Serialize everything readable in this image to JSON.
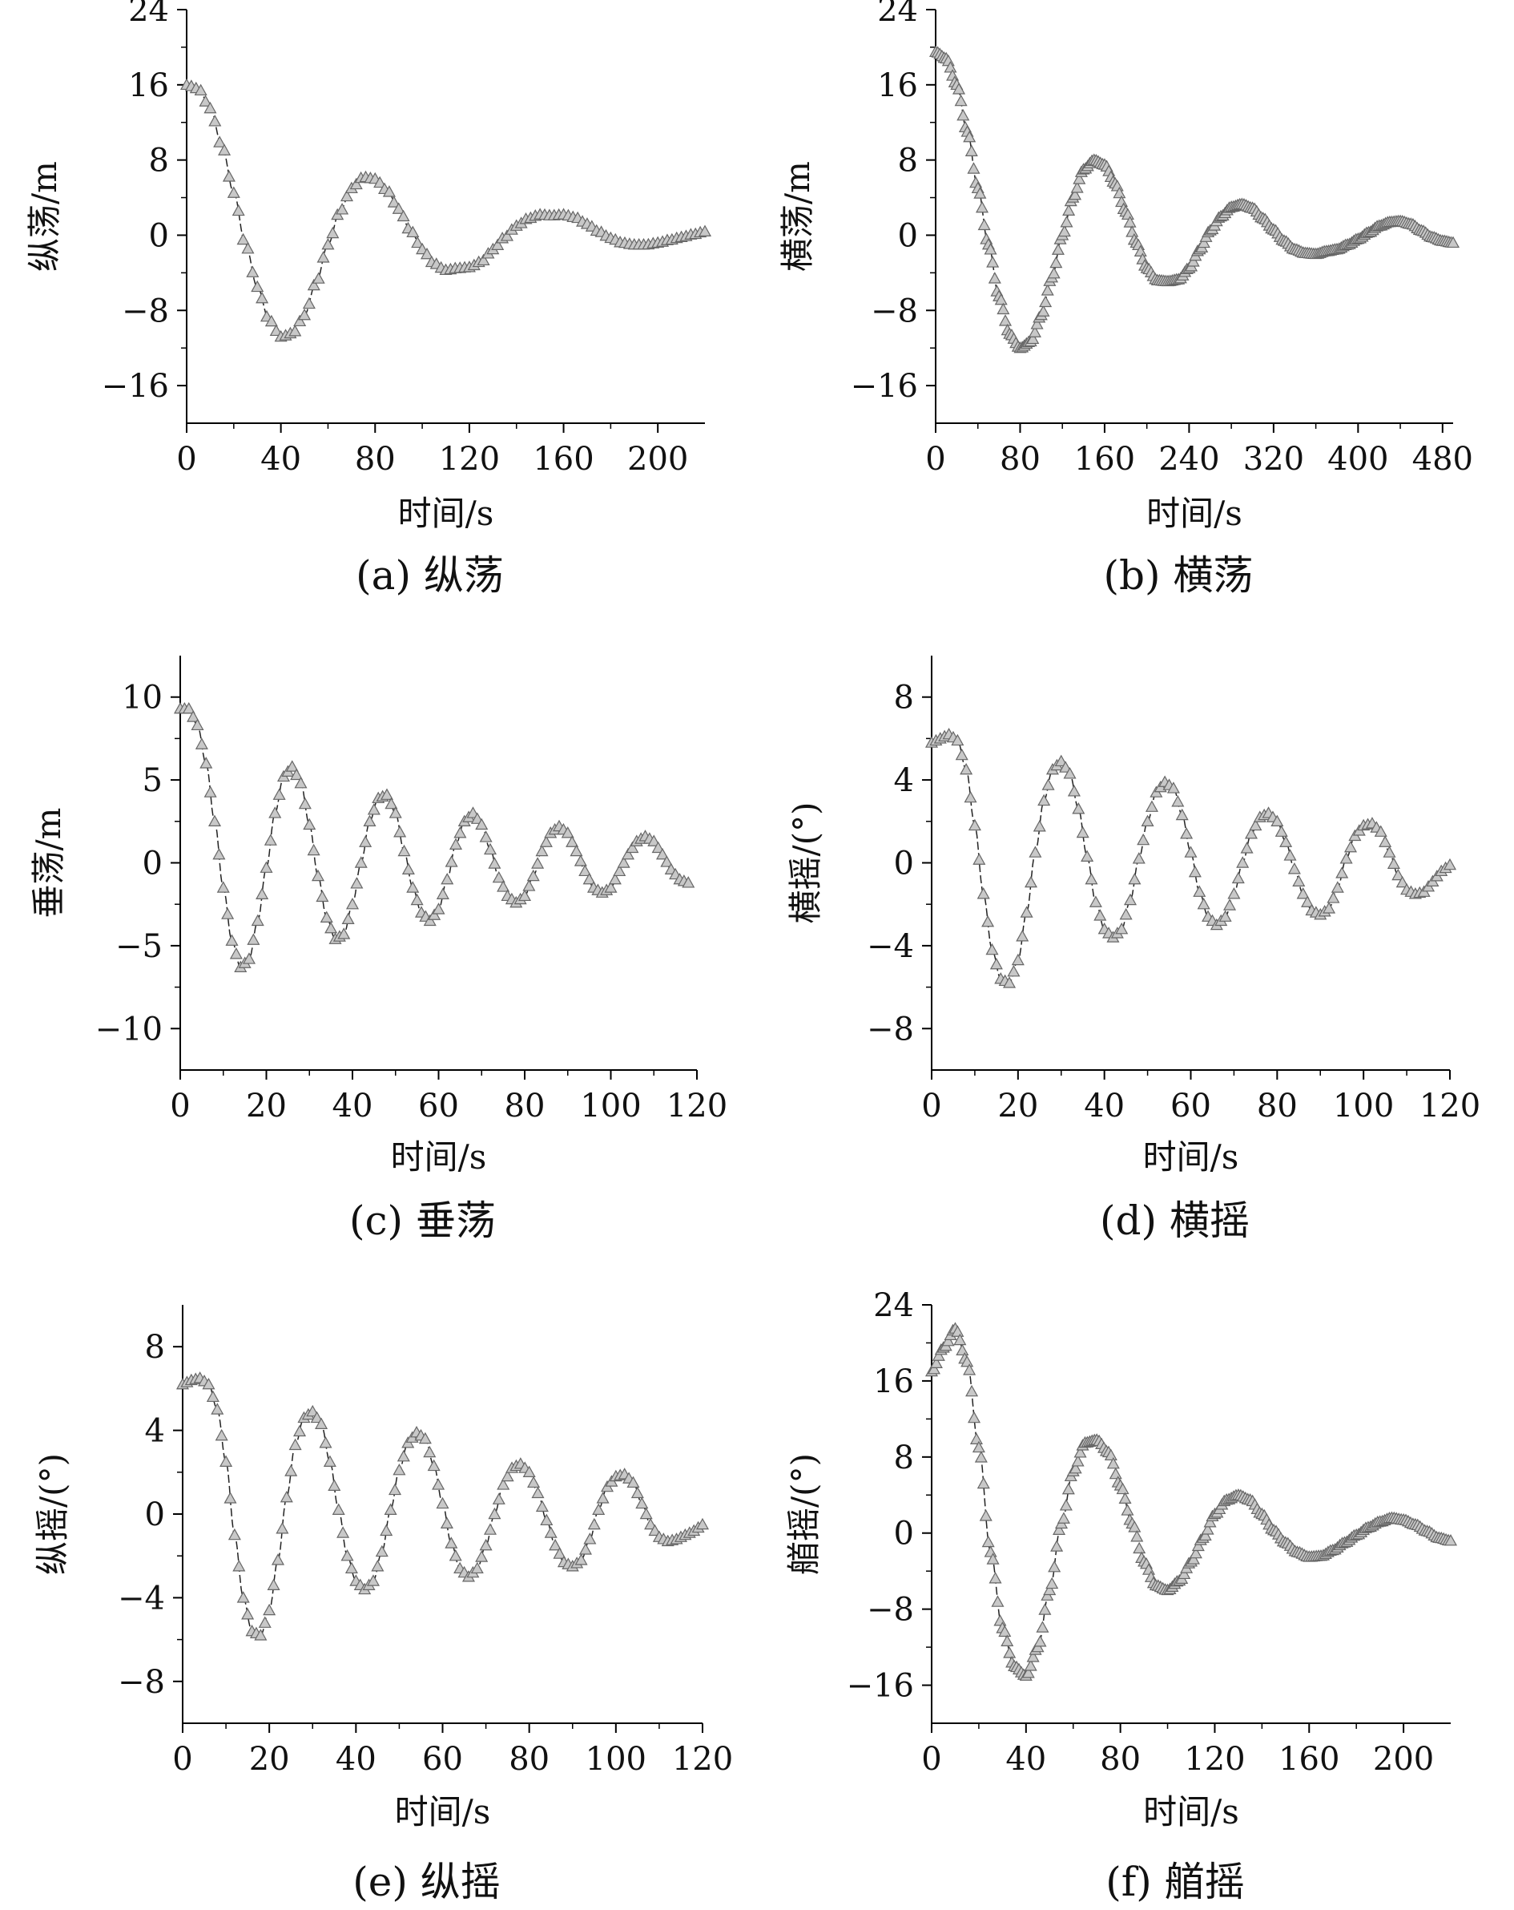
{
  "figure": {
    "background": "#ffffff",
    "marker_fill": "#c8c8c8",
    "marker_stroke": "#666666",
    "line_color": "#222222"
  },
  "chart_data": [
    {
      "id": "a",
      "type": "line",
      "caption": "(a) 纵荡",
      "xlabel": "时间/s",
      "ylabel": "纵荡/m",
      "xlim": [
        0,
        220
      ],
      "ylim": [
        -20,
        24
      ],
      "xticks": [
        0,
        40,
        80,
        120,
        160,
        200
      ],
      "yticks": [
        -16,
        -8,
        0,
        8,
        16,
        24
      ],
      "xtick_labels": [
        "0",
        "40",
        "80",
        "120",
        "160",
        "200"
      ],
      "ytick_labels": [
        "−16",
        "−8",
        "0",
        "8",
        "16",
        "24"
      ],
      "marker": "triangle",
      "marker_step": 2,
      "series": [
        {
          "x": [
            0,
            5,
            10,
            15,
            20,
            25,
            30,
            35,
            40,
            45,
            50,
            55,
            60,
            65,
            70,
            75,
            80,
            85,
            90,
            95,
            100,
            105,
            110,
            115,
            120,
            125,
            130,
            135,
            140,
            145,
            150,
            155,
            160,
            165,
            170,
            175,
            180,
            185,
            190,
            195,
            200,
            205,
            210,
            215,
            220
          ],
          "values": [
            16,
            15.6,
            13.5,
            9.5,
            4.5,
            -1,
            -5.5,
            -9,
            -10.8,
            -10.4,
            -8.5,
            -5,
            -1,
            2.5,
            5,
            6.2,
            6,
            4.8,
            2.8,
            0.5,
            -1.5,
            -3,
            -3.7,
            -3.5,
            -3.4,
            -2.8,
            -1.5,
            -0.2,
            1,
            1.8,
            2.2,
            2.1,
            2.2,
            1.9,
            1.2,
            0.4,
            -0.3,
            -0.8,
            -1,
            -1,
            -0.8,
            -0.5,
            -0.2,
            0.1,
            0.4
          ]
        }
      ]
    },
    {
      "id": "b",
      "type": "line",
      "caption": "(b) 横荡",
      "xlabel": "时间/s",
      "ylabel": "横荡/m",
      "xlim": [
        0,
        490
      ],
      "ylim": [
        -20,
        24
      ],
      "xticks": [
        0,
        80,
        160,
        240,
        320,
        400,
        480
      ],
      "yticks": [
        -16,
        -8,
        0,
        8,
        16,
        24
      ],
      "xtick_labels": [
        "0",
        "80",
        "160",
        "240",
        "320",
        "400",
        "480"
      ],
      "ytick_labels": [
        "−16",
        "−8",
        "0",
        "8",
        "16",
        "24"
      ],
      "marker": "triangle",
      "marker_step": 2,
      "series": [
        {
          "x": [
            0,
            10,
            20,
            30,
            40,
            50,
            60,
            70,
            80,
            90,
            100,
            110,
            120,
            130,
            140,
            150,
            160,
            170,
            180,
            190,
            200,
            210,
            220,
            230,
            240,
            250,
            260,
            270,
            280,
            290,
            300,
            310,
            320,
            330,
            340,
            350,
            360,
            370,
            380,
            390,
            400,
            410,
            420,
            430,
            440,
            450,
            460,
            470,
            480,
            490
          ],
          "values": [
            19.5,
            18.8,
            16,
            11,
            5,
            -1,
            -6.5,
            -10.5,
            -12,
            -11.3,
            -8.5,
            -4.5,
            0,
            4,
            7,
            8,
            7.5,
            5.5,
            2.5,
            -0.8,
            -3.5,
            -4.8,
            -4.9,
            -4.7,
            -3.5,
            -1.5,
            0.5,
            2,
            3,
            3.3,
            2.9,
            1.8,
            0.6,
            -0.6,
            -1.5,
            -1.9,
            -2,
            -1.7,
            -1.5,
            -1,
            -0.4,
            0.3,
            1,
            1.4,
            1.5,
            1.2,
            0.5,
            -0.2,
            -0.6,
            -0.8
          ]
        }
      ]
    },
    {
      "id": "c",
      "type": "line",
      "caption": "(c) 垂荡",
      "xlabel": "时间/s",
      "ylabel": "垂荡/m",
      "xlim": [
        0,
        120
      ],
      "ylim": [
        -12.5,
        12.5
      ],
      "xticks": [
        0,
        20,
        40,
        60,
        80,
        100,
        120
      ],
      "yticks": [
        -10,
        -5,
        0,
        5,
        10
      ],
      "xtick_labels": [
        "0",
        "20",
        "40",
        "60",
        "80",
        "100",
        "120"
      ],
      "ytick_labels": [
        "−10",
        "−5",
        "0",
        "5",
        "10"
      ],
      "marker": "triangle",
      "marker_step": 1,
      "series": [
        {
          "x": [
            0,
            2,
            4,
            6,
            8,
            10,
            12,
            14,
            16,
            18,
            20,
            22,
            24,
            26,
            28,
            30,
            32,
            34,
            36,
            38,
            40,
            42,
            44,
            46,
            48,
            50,
            52,
            54,
            56,
            58,
            60,
            62,
            64,
            66,
            68,
            70,
            72,
            74,
            76,
            78,
            80,
            82,
            84,
            86,
            88,
            90,
            92,
            94,
            96,
            98,
            100,
            102,
            104,
            106,
            108,
            110,
            112,
            114,
            116,
            118
          ],
          "values": [
            9.3,
            9.3,
            8.3,
            6,
            2.5,
            -1.5,
            -4.7,
            -6.3,
            -5.8,
            -3.5,
            -0.3,
            3,
            5.2,
            5.8,
            4.8,
            2.3,
            -0.8,
            -3.3,
            -4.6,
            -4.3,
            -2.5,
            0,
            2.5,
            3.9,
            4.1,
            3,
            0.7,
            -1.5,
            -3,
            -3.5,
            -2.8,
            -1,
            1.1,
            2.5,
            3,
            2.3,
            0.8,
            -0.9,
            -2,
            -2.4,
            -2,
            -0.8,
            0.7,
            1.8,
            2.2,
            1.8,
            0.7,
            -0.5,
            -1.5,
            -1.8,
            -1.5,
            -0.5,
            0.5,
            1.3,
            1.6,
            1.3,
            0.5,
            -0.4,
            -1,
            -1.2
          ]
        }
      ]
    },
    {
      "id": "d",
      "type": "line",
      "caption": "(d) 横摇",
      "xlabel": "时间/s",
      "ylabel": "横摇/(°)",
      "xlim": [
        0,
        120
      ],
      "ylim": [
        -10,
        10
      ],
      "xticks": [
        0,
        20,
        40,
        60,
        80,
        100,
        120
      ],
      "yticks": [
        -8,
        -4,
        0,
        4,
        8
      ],
      "xtick_labels": [
        "0",
        "20",
        "40",
        "60",
        "80",
        "100",
        "120"
      ],
      "ytick_labels": [
        "−8",
        "−4",
        "0",
        "4",
        "8"
      ],
      "marker": "triangle",
      "marker_step": 1,
      "series": [
        {
          "x": [
            0,
            2,
            4,
            6,
            8,
            10,
            12,
            14,
            16,
            18,
            20,
            22,
            24,
            26,
            28,
            30,
            32,
            34,
            36,
            38,
            40,
            42,
            44,
            46,
            48,
            50,
            52,
            54,
            56,
            58,
            60,
            62,
            64,
            66,
            68,
            70,
            72,
            74,
            76,
            78,
            80,
            82,
            84,
            86,
            88,
            90,
            92,
            94,
            96,
            98,
            100,
            102,
            104,
            106,
            108,
            110,
            112,
            114,
            116,
            118,
            120
          ],
          "values": [
            5.8,
            6,
            6.2,
            5.9,
            4.5,
            1.8,
            -1.5,
            -4.2,
            -5.6,
            -5.8,
            -4.7,
            -2.4,
            0.5,
            3,
            4.5,
            4.9,
            4.3,
            2.6,
            0.3,
            -1.9,
            -3.2,
            -3.6,
            -3.2,
            -1.8,
            0.2,
            2,
            3.4,
            3.9,
            3.6,
            2.3,
            0.5,
            -1.4,
            -2.6,
            -3,
            -2.6,
            -1.5,
            0,
            1.4,
            2.2,
            2.4,
            2,
            1,
            -0.3,
            -1.5,
            -2.3,
            -2.5,
            -2.2,
            -1.2,
            0.2,
            1.3,
            1.8,
            1.9,
            1.5,
            0.5,
            -0.6,
            -1.3,
            -1.5,
            -1.4,
            -0.9,
            -0.4,
            -0.1
          ]
        }
      ]
    },
    {
      "id": "e",
      "type": "line",
      "caption": "(e) 纵摇",
      "xlabel": "时间/s",
      "ylabel": "纵摇/(°)",
      "xlim": [
        0,
        120
      ],
      "ylim": [
        -10,
        10
      ],
      "xticks": [
        0,
        20,
        40,
        60,
        80,
        100,
        120
      ],
      "yticks": [
        -8,
        -4,
        0,
        4,
        8
      ],
      "xtick_labels": [
        "0",
        "20",
        "40",
        "60",
        "80",
        "100",
        "120"
      ],
      "ytick_labels": [
        "−8",
        "−4",
        "0",
        "4",
        "8"
      ],
      "marker": "triangle",
      "marker_step": 1,
      "series": [
        {
          "x": [
            0,
            2,
            4,
            6,
            8,
            10,
            12,
            14,
            16,
            18,
            20,
            22,
            24,
            26,
            28,
            30,
            32,
            34,
            36,
            38,
            40,
            42,
            44,
            46,
            48,
            50,
            52,
            54,
            56,
            58,
            60,
            62,
            64,
            66,
            68,
            70,
            72,
            74,
            76,
            78,
            80,
            82,
            84,
            86,
            88,
            90,
            92,
            94,
            96,
            98,
            100,
            102,
            104,
            106,
            108,
            110,
            112,
            114,
            116,
            118,
            120
          ],
          "values": [
            6.2,
            6.4,
            6.5,
            6.2,
            5,
            2.5,
            -1,
            -4,
            -5.6,
            -5.8,
            -4.6,
            -2.2,
            0.8,
            3.3,
            4.6,
            4.9,
            4.3,
            2.5,
            0.2,
            -2,
            -3.2,
            -3.6,
            -3.2,
            -1.8,
            0.2,
            2.1,
            3.4,
            3.9,
            3.6,
            2.3,
            0.5,
            -1.4,
            -2.6,
            -3,
            -2.6,
            -1.5,
            0,
            1.4,
            2.2,
            2.4,
            2,
            1,
            -0.3,
            -1.5,
            -2.3,
            -2.5,
            -2.2,
            -1.2,
            0.2,
            1.3,
            1.8,
            1.9,
            1.5,
            0.5,
            -0.5,
            -1.1,
            -1.3,
            -1.2,
            -1,
            -0.8,
            -0.5
          ]
        }
      ]
    },
    {
      "id": "f",
      "type": "line",
      "caption": "(f) 艏摇",
      "xlabel": "时间/s",
      "ylabel": "艏摇/(°)",
      "xlim": [
        0,
        220
      ],
      "ylim": [
        -20,
        24
      ],
      "xticks": [
        0,
        40,
        80,
        120,
        160,
        200
      ],
      "yticks": [
        -16,
        -8,
        0,
        8,
        16,
        24
      ],
      "xtick_labels": [
        "0",
        "40",
        "80",
        "120",
        "160",
        "200"
      ],
      "ytick_labels": [
        "−16",
        "−8",
        "0",
        "8",
        "16",
        "24"
      ],
      "marker": "triangle",
      "marker_step": 1,
      "series": [
        {
          "x": [
            0,
            5,
            10,
            15,
            20,
            25,
            30,
            35,
            40,
            45,
            50,
            55,
            60,
            65,
            70,
            75,
            80,
            85,
            90,
            95,
            100,
            105,
            110,
            115,
            120,
            125,
            130,
            135,
            140,
            145,
            150,
            155,
            160,
            165,
            170,
            175,
            180,
            185,
            190,
            195,
            200,
            205,
            210,
            215,
            220
          ],
          "values": [
            17,
            19.5,
            21.5,
            18,
            9,
            -2,
            -10,
            -14,
            -15,
            -12,
            -6,
            1,
            6.5,
            9.5,
            9.8,
            8.5,
            5,
            1,
            -3,
            -5.5,
            -6,
            -5,
            -3,
            -0.5,
            2,
            3.5,
            4,
            3.5,
            2,
            0.3,
            -1,
            -2,
            -2.5,
            -2.4,
            -1.8,
            -1,
            -0.2,
            0.6,
            1.2,
            1.6,
            1.4,
            0.9,
            0.2,
            -0.5,
            -0.8
          ]
        }
      ]
    }
  ]
}
